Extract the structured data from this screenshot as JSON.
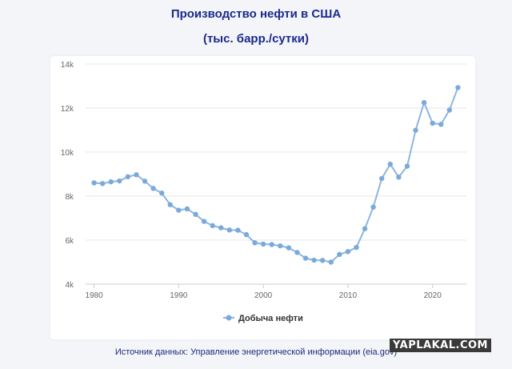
{
  "header": {
    "title": "Производство нефти в США",
    "subtitle": "(тыс. барр./сутки)"
  },
  "footer": {
    "source": "Источник данных: Управление энергетической информации (eia.gov)",
    "watermark": "YAPLAKAL.COM"
  },
  "colors": {
    "line": "#8fb5de",
    "point": "#7aaadb",
    "grid": "#e6e6e6",
    "axis_text": "#666666"
  },
  "chart_data": {
    "type": "line",
    "title": "Производство нефти в США",
    "subtitle": "(тыс. барр./сутки)",
    "xlabel": "",
    "ylabel": "",
    "xlim": [
      1979,
      2024
    ],
    "ylim": [
      4000,
      14000
    ],
    "x_ticks": [
      1980,
      1990,
      2000,
      2010,
      2020
    ],
    "y_ticks": [
      4000,
      6000,
      8000,
      10000,
      12000,
      14000
    ],
    "y_tick_labels": [
      "4k",
      "6k",
      "8k",
      "10k",
      "12k",
      "14k"
    ],
    "grid": "horizontal",
    "legend_position": "bottom-center",
    "series": [
      {
        "name": "Добыча нефти",
        "x": [
          1980,
          1981,
          1982,
          1983,
          1984,
          1985,
          1986,
          1987,
          1988,
          1989,
          1990,
          1991,
          1992,
          1993,
          1994,
          1995,
          1996,
          1997,
          1998,
          1999,
          2000,
          2001,
          2002,
          2003,
          2004,
          2005,
          2006,
          2007,
          2008,
          2009,
          2010,
          2011,
          2012,
          2013,
          2014,
          2015,
          2016,
          2017,
          2018,
          2019,
          2020,
          2021,
          2022,
          2023
        ],
        "y": [
          8600,
          8570,
          8650,
          8690,
          8880,
          8970,
          8680,
          8350,
          8140,
          7610,
          7360,
          7420,
          7170,
          6850,
          6660,
          6560,
          6460,
          6450,
          6250,
          5880,
          5820,
          5800,
          5740,
          5650,
          5440,
          5180,
          5090,
          5080,
          5000,
          5350,
          5480,
          5670,
          6520,
          7500,
          8800,
          9450,
          8860,
          9360,
          10990,
          12250,
          11310,
          11260,
          11910,
          12930
        ]
      }
    ]
  }
}
